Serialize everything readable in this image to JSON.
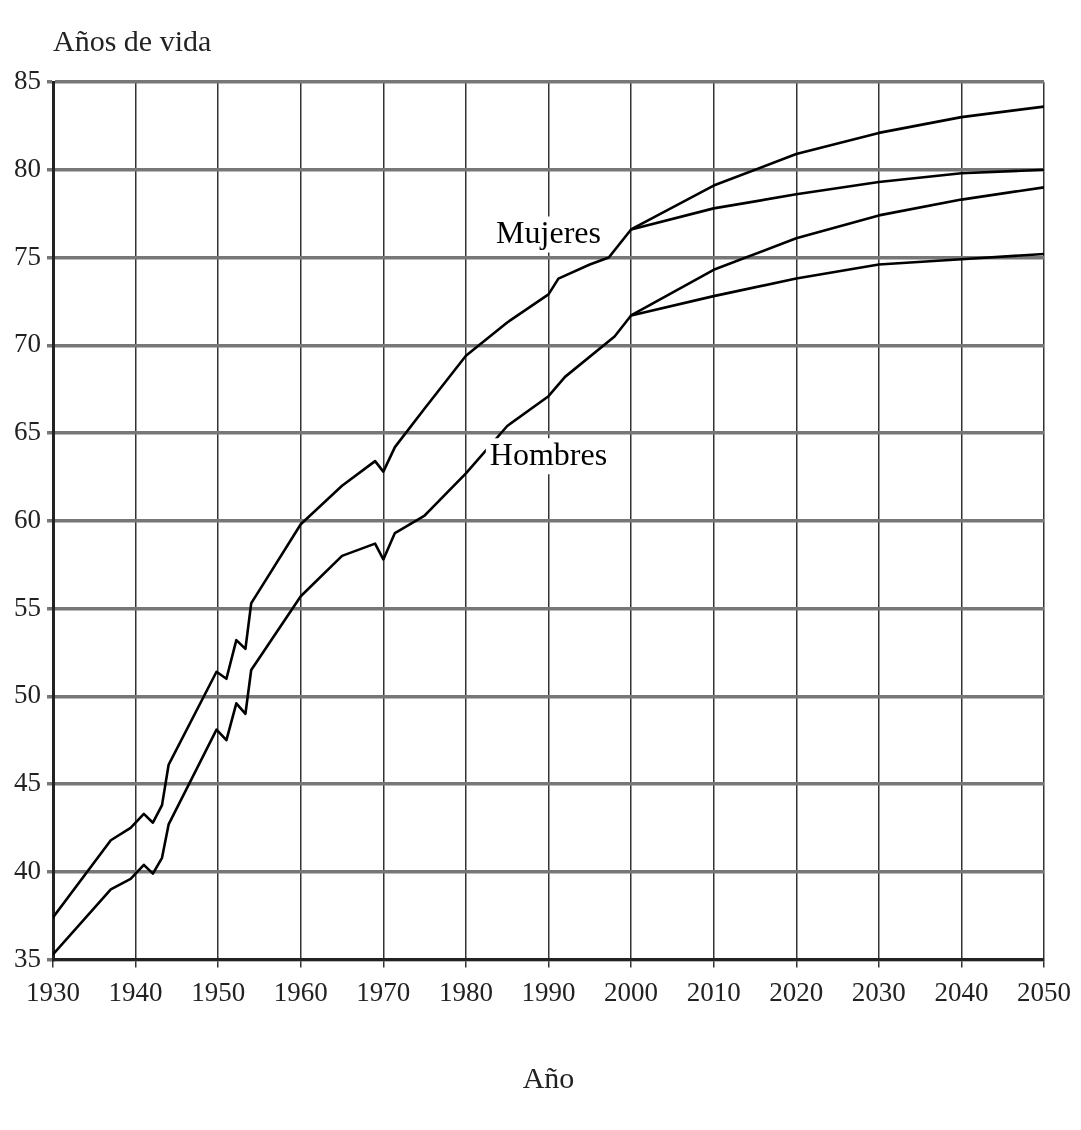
{
  "chart_data": {
    "type": "line",
    "xlabel": "Año",
    "ylabel": "Años de vida",
    "xlim": [
      1930,
      2050
    ],
    "xticks": [
      1930,
      1940,
      1950,
      1960,
      1970,
      1980,
      1990,
      2000,
      2010,
      2020,
      2030,
      2040,
      2050
    ],
    "ylim": [
      35,
      85
    ],
    "yticks": [
      35,
      40,
      45,
      50,
      55,
      60,
      65,
      70,
      75,
      80,
      85
    ],
    "grid": true,
    "legend": false,
    "marker": "none",
    "line_style": "solid",
    "series": [
      {
        "name": "Mujeres",
        "color": "#000000",
        "x": [
          1930,
          1937,
          1939.4,
          1941,
          1942.1,
          1943.2,
          1944,
          1949.8,
          1951,
          1952.2,
          1953.3,
          1954,
          1960,
          1965,
          1969,
          1970,
          1971.4,
          1975,
          1980,
          1985,
          1990,
          1991.2,
          1995,
          1997.3,
          2000,
          2010,
          2020,
          2030,
          2040,
          2050
        ],
        "values": [
          37.4,
          41.8,
          42.5,
          43.3,
          42.8,
          43.8,
          46.1,
          51.4,
          51.0,
          53.2,
          52.7,
          55.3,
          59.8,
          62.0,
          63.4,
          62.8,
          64.2,
          66.4,
          69.4,
          71.3,
          72.9,
          73.8,
          74.6,
          75.0,
          76.6,
          79.1,
          80.9,
          82.1,
          83.0,
          83.6
        ]
      },
      {
        "color": "#000000",
        "x": [
          2000,
          2010,
          2020,
          2030,
          2040,
          2050
        ],
        "values": [
          76.6,
          77.8,
          78.6,
          79.3,
          79.8,
          80.0
        ]
      },
      {
        "name": "Hombres",
        "color": "#000000",
        "x": [
          1930,
          1937,
          1939.4,
          1941,
          1942.1,
          1943.2,
          1944,
          1949.8,
          1951,
          1952.2,
          1953.3,
          1954,
          1960,
          1965,
          1969,
          1970,
          1971.4,
          1975,
          1980,
          1985,
          1990,
          1992,
          1998,
          2000,
          2010,
          2020,
          2030,
          2040,
          2050
        ],
        "values": [
          35.3,
          39.0,
          39.6,
          40.4,
          39.9,
          40.8,
          42.7,
          48.1,
          47.5,
          49.6,
          49.0,
          51.5,
          55.7,
          58.0,
          58.7,
          57.8,
          59.3,
          60.3,
          62.7,
          65.4,
          67.1,
          68.2,
          70.5,
          71.7,
          74.3,
          76.1,
          77.4,
          78.3,
          79.0
        ]
      },
      {
        "color": "#000000",
        "x": [
          2000,
          2010,
          2020,
          2030,
          2040,
          2050
        ],
        "values": [
          71.7,
          72.8,
          73.8,
          74.6,
          74.9,
          75.2
        ]
      }
    ]
  }
}
